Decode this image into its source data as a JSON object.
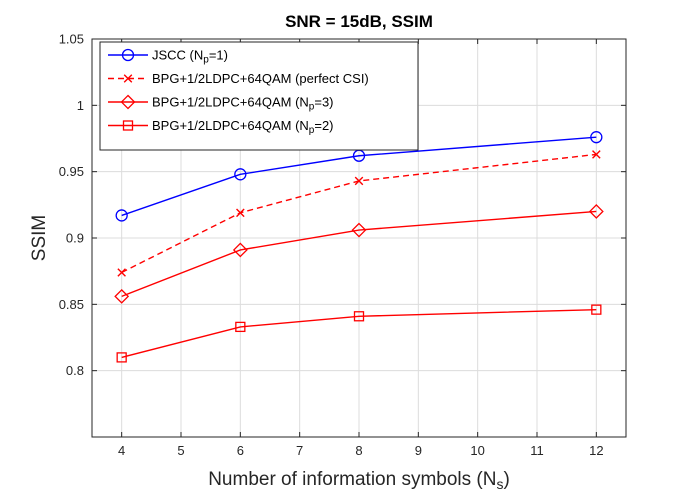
{
  "chart_data": {
    "type": "line",
    "title": "SNR = 15dB, SSIM",
    "xlabel": {
      "main": "Number of information symbols (N",
      "sub": "s",
      "end": ")"
    },
    "ylabel": "SSIM",
    "xlim": [
      3.5,
      12.5
    ],
    "ylim": [
      0.75,
      1.05
    ],
    "xticks": [
      4,
      5,
      6,
      7,
      8,
      9,
      10,
      11,
      12
    ],
    "xtick_labels": [
      "4",
      "5",
      "6",
      "7",
      "8",
      "9",
      "10",
      "11",
      "12"
    ],
    "yticks": [
      0.8,
      0.85,
      0.9,
      0.95,
      1.0,
      1.05
    ],
    "ytick_labels": [
      "0.8",
      "0.85",
      "0.9",
      "0.95",
      "1",
      "1.05"
    ],
    "grid": true,
    "legend_position": "top-left",
    "series": [
      {
        "key": "jscc",
        "name": "JSCC (Np=1)",
        "label": {
          "main": "JSCC (N",
          "sub": "p",
          "end": "=1)"
        },
        "color": "#0000ff",
        "line_style": "solid",
        "marker": "circle",
        "x": [
          4,
          6,
          8,
          12
        ],
        "y": [
          0.917,
          0.948,
          0.962,
          0.976
        ]
      },
      {
        "key": "bpg-perfect-csi",
        "name": "BPG+1/2LDPC+64QAM (perfect CSI)",
        "label": {
          "main": "BPG+1/2LDPC+64QAM (perfect CSI)",
          "sub": "",
          "end": ""
        },
        "color": "#ff0000",
        "line_style": "dashed",
        "marker": "x",
        "x": [
          4,
          6,
          8,
          12
        ],
        "y": [
          0.874,
          0.919,
          0.943,
          0.963
        ]
      },
      {
        "key": "bpg-np3",
        "name": "BPG+1/2LDPC+64QAM (Np=3)",
        "label": {
          "main": "BPG+1/2LDPC+64QAM (N",
          "sub": "p",
          "end": "=3)"
        },
        "color": "#ff0000",
        "line_style": "solid",
        "marker": "diamond",
        "x": [
          4,
          6,
          8,
          12
        ],
        "y": [
          0.856,
          0.891,
          0.906,
          0.92
        ]
      },
      {
        "key": "bpg-np2",
        "name": "BPG+1/2LDPC+64QAM (Np=2)",
        "label": {
          "main": "BPG+1/2LDPC+64QAM (N",
          "sub": "p",
          "end": "=2)"
        },
        "color": "#ff0000",
        "line_style": "solid",
        "marker": "square",
        "x": [
          4,
          6,
          8,
          12
        ],
        "y": [
          0.81,
          0.833,
          0.841,
          0.846
        ]
      }
    ]
  }
}
